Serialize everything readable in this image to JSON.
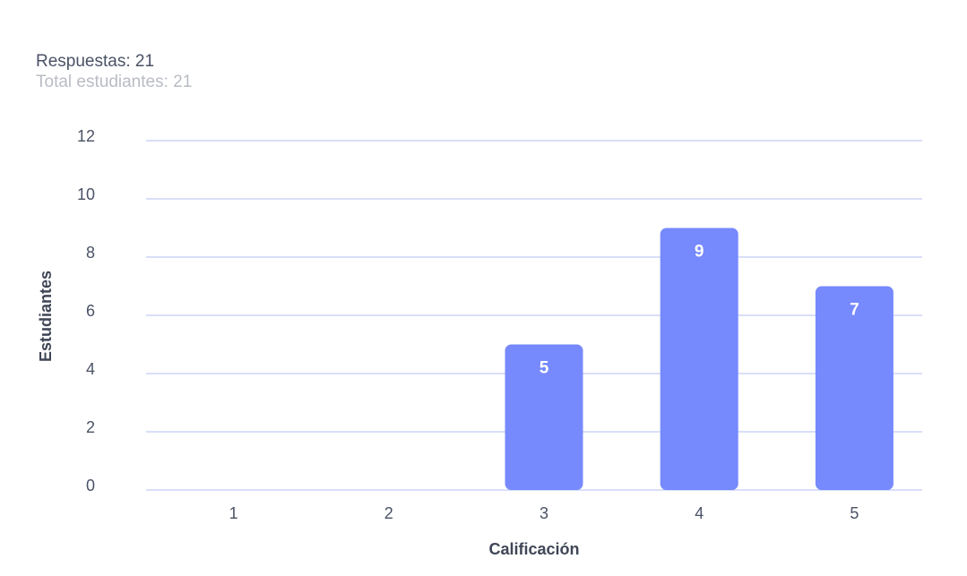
{
  "summary": {
    "responses": "Respuestas: 21",
    "total_students": "Total estudiantes: 21"
  },
  "colors": {
    "bar": "#7689fd",
    "grid": "#b3bff0",
    "text": "#4a5266",
    "muted_text": "#b9bcc4"
  },
  "chart_data": {
    "type": "bar",
    "categories": [
      "1",
      "2",
      "3",
      "4",
      "5"
    ],
    "values": [
      0,
      0,
      5,
      9,
      7
    ],
    "xlabel": "Calificación",
    "ylabel": "Estudiantes",
    "ylim": [
      0,
      12
    ],
    "yticks": [
      0,
      2,
      4,
      6,
      8,
      10,
      12
    ],
    "grid": true,
    "data_labels": true
  }
}
